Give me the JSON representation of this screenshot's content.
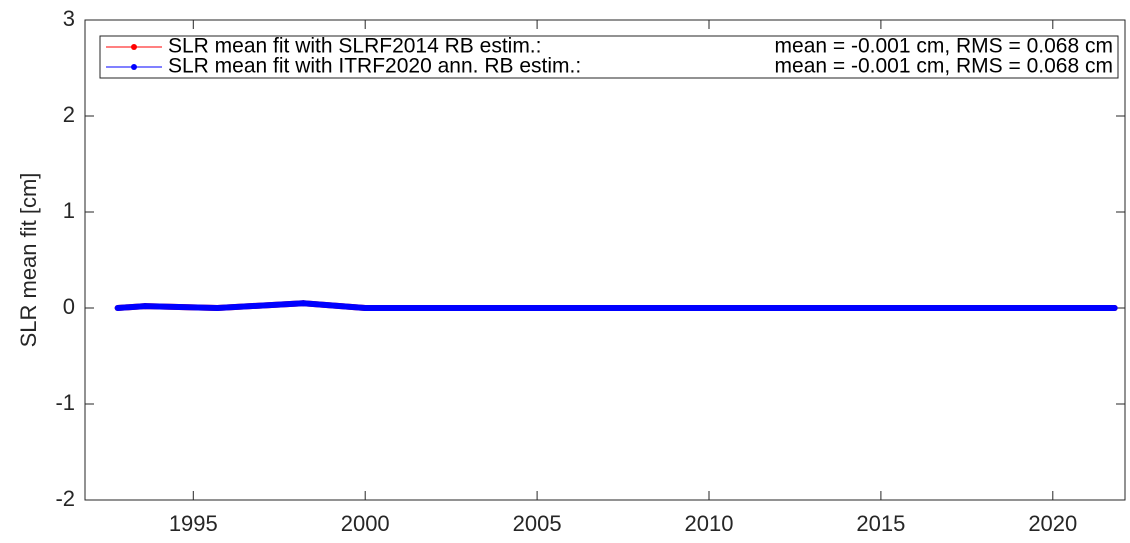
{
  "chart_data": {
    "type": "line",
    "ylabel": "SLR mean fit [cm]",
    "xlim": [
      1991.85,
      2022.1
    ],
    "xticks": [
      1995,
      2000,
      2005,
      2010,
      2015,
      2020
    ],
    "ylim": [
      -2,
      3
    ],
    "yticks": [
      -2,
      -1,
      0,
      1,
      2,
      3
    ],
    "series": [
      {
        "name": "SLR mean fit with SLRF2014 RB estim.:",
        "stats": "mean = -0.001 cm, RMS = 0.068 cm",
        "color": "#ff0000",
        "x": [
          1992.8,
          1993.6,
          1995.7,
          1998.2,
          2000,
          2005,
          2010,
          2015,
          2020,
          2021.8
        ],
        "values": [
          0,
          0.02,
          0,
          0.05,
          0,
          0,
          0,
          0,
          0,
          0
        ]
      },
      {
        "name": "SLR mean fit with ITRF2020 ann. RB estim.:",
        "stats": "mean = -0.001 cm, RMS = 0.068 cm",
        "color": "#0000ff",
        "x": [
          1992.8,
          1993.6,
          1995.7,
          1998.2,
          2000,
          2005,
          2010,
          2015,
          2020,
          2021.8
        ],
        "values": [
          0,
          0.02,
          0,
          0.05,
          0,
          0,
          0,
          0,
          0,
          0
        ]
      }
    ]
  }
}
